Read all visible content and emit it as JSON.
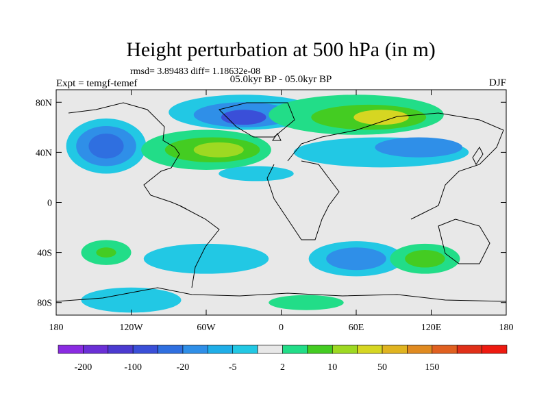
{
  "title": "Height perturbation at 500 hPa (in m)",
  "stats_line": "rmsd= 3.89483 diff= 1.18632e-08",
  "left_label": "Expt = temgf-temef",
  "center_label": "05.0kyr BP - 05.0kyr BP",
  "right_label": "DJF",
  "x_axis": {
    "range": [
      -180,
      180
    ],
    "ticks": [
      {
        "value": -180,
        "label": "180"
      },
      {
        "value": -120,
        "label": "120W"
      },
      {
        "value": -60,
        "label": "60W"
      },
      {
        "value": 0,
        "label": "0"
      },
      {
        "value": 60,
        "label": "60E"
      },
      {
        "value": 120,
        "label": "120E"
      },
      {
        "value": 180,
        "label": "180"
      }
    ]
  },
  "y_axis": {
    "range": [
      -90,
      90
    ],
    "ticks": [
      {
        "value": 80,
        "label": "80N"
      },
      {
        "value": 40,
        "label": "40N"
      },
      {
        "value": 0,
        "label": "0"
      },
      {
        "value": -40,
        "label": "40S"
      },
      {
        "value": -80,
        "label": "80S"
      }
    ]
  },
  "colorbar": {
    "colors": [
      "#8a2be2",
      "#6a2fd6",
      "#4b3ad0",
      "#3a4fd8",
      "#2f6fe0",
      "#2f8fe8",
      "#1faee8",
      "#22c8e4",
      "#e8e8e8",
      "#22dd88",
      "#44cc22",
      "#9ed922",
      "#d6d622",
      "#e0b420",
      "#e08a20",
      "#e06020",
      "#e03018",
      "#ee1a10"
    ],
    "labels": [
      {
        "after_box": 1,
        "text": "-200"
      },
      {
        "after_box": 3,
        "text": "-100"
      },
      {
        "after_box": 5,
        "text": "-20"
      },
      {
        "after_box": 7,
        "text": "-5"
      },
      {
        "after_box": 9,
        "text": "2"
      },
      {
        "after_box": 11,
        "text": "10"
      },
      {
        "after_box": 13,
        "text": "50"
      },
      {
        "after_box": 15,
        "text": "150"
      }
    ]
  },
  "field_colors": {
    "background": "#e8e8e8",
    "neg_light": "#22c8e4",
    "neg_mid": "#1faee8",
    "neg_strong": "#2f8fe8",
    "neg_deep": "#2f6fe0",
    "neg_core": "#3a4fd8",
    "pos_light": "#22dd88",
    "pos_mid": "#44cc22",
    "pos_strong": "#9ed922",
    "pos_core": "#d6d622"
  },
  "field_blobs": [
    {
      "lon": -140,
      "lat": 45,
      "rlon": 32,
      "rlat": 22,
      "level": "neg_light"
    },
    {
      "lon": -140,
      "lat": 45,
      "rlon": 24,
      "rlat": 16,
      "level": "neg_strong"
    },
    {
      "lon": -140,
      "lat": 45,
      "rlon": 14,
      "rlat": 10,
      "level": "neg_deep"
    },
    {
      "lon": -30,
      "lat": 72,
      "rlon": 60,
      "rlat": 14,
      "level": "neg_light"
    },
    {
      "lon": -30,
      "lat": 70,
      "rlon": 40,
      "rlat": 10,
      "level": "neg_strong"
    },
    {
      "lon": -30,
      "lat": 68,
      "rlon": 18,
      "rlat": 6,
      "level": "neg_core"
    },
    {
      "lon": -60,
      "lat": 42,
      "rlon": 52,
      "rlat": 16,
      "level": "pos_light"
    },
    {
      "lon": -55,
      "lat": 42,
      "rlon": 38,
      "rlat": 10,
      "level": "pos_mid"
    },
    {
      "lon": -50,
      "lat": 42,
      "rlon": 20,
      "rlat": 6,
      "level": "pos_strong"
    },
    {
      "lon": 60,
      "lat": 70,
      "rlon": 70,
      "rlat": 16,
      "level": "pos_light"
    },
    {
      "lon": 70,
      "lat": 68,
      "rlon": 46,
      "rlat": 10,
      "level": "pos_mid"
    },
    {
      "lon": 80,
      "lat": 68,
      "rlon": 22,
      "rlat": 6,
      "level": "pos_core"
    },
    {
      "lon": 80,
      "lat": 40,
      "rlon": 70,
      "rlat": 12,
      "level": "neg_light"
    },
    {
      "lon": 110,
      "lat": 44,
      "rlon": 35,
      "rlat": 8,
      "level": "neg_strong"
    },
    {
      "lon": -20,
      "lat": 23,
      "rlon": 30,
      "rlat": 6,
      "level": "neg_light"
    },
    {
      "lon": -140,
      "lat": -40,
      "rlon": 20,
      "rlat": 10,
      "level": "pos_light"
    },
    {
      "lon": -140,
      "lat": -40,
      "rlon": 8,
      "rlat": 4,
      "level": "pos_mid"
    },
    {
      "lon": -60,
      "lat": -45,
      "rlon": 50,
      "rlat": 12,
      "level": "neg_light"
    },
    {
      "lon": 60,
      "lat": -45,
      "rlon": 38,
      "rlat": 14,
      "level": "neg_light"
    },
    {
      "lon": 60,
      "lat": -45,
      "rlon": 24,
      "rlat": 9,
      "level": "neg_strong"
    },
    {
      "lon": 115,
      "lat": -45,
      "rlon": 28,
      "rlat": 12,
      "level": "pos_light"
    },
    {
      "lon": 115,
      "lat": -45,
      "rlon": 16,
      "rlat": 7,
      "level": "pos_mid"
    },
    {
      "lon": -120,
      "lat": -78,
      "rlon": 40,
      "rlat": 10,
      "level": "neg_light"
    },
    {
      "lon": 20,
      "lat": -80,
      "rlon": 30,
      "rlat": 6,
      "level": "pos_light"
    }
  ]
}
